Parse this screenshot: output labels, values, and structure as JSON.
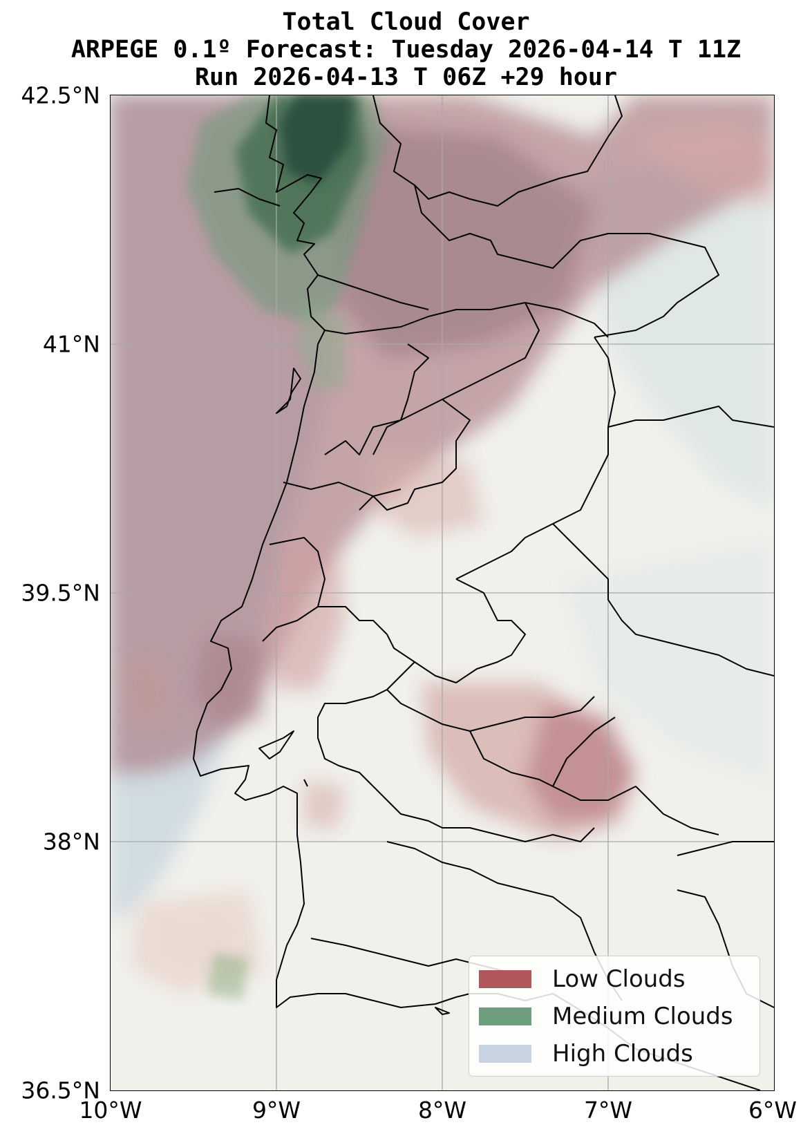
{
  "title": {
    "line1": "Total Cloud Cover",
    "line2": "ARPEGE 0.1º Forecast: Tuesday 2026-04-14 T 11Z",
    "line3": "Run 2026-04-13 T 06Z +29 hour"
  },
  "axes": {
    "lat_ticks": [
      "42.5°N",
      "41°N",
      "39.5°N",
      "38°N",
      "36.5°N"
    ],
    "lon_ticks": [
      "10°W",
      "9°W",
      "8°W",
      "7°W",
      "6°W"
    ],
    "lat_range": [
      36.5,
      42.5
    ],
    "lon_range": [
      -10,
      -6
    ],
    "grid": true
  },
  "legend": {
    "placement": "bottom-right",
    "items": [
      {
        "label": "Low Clouds",
        "color": "#b0575e"
      },
      {
        "label": "Medium Clouds",
        "color": "#6e9e7e"
      },
      {
        "label": "High Clouds",
        "color": "#c7d3e0"
      }
    ]
  },
  "colors": {
    "land_background": "#f1f1ec",
    "low_cloud": "#b0575e",
    "medium_cloud": "#2f6a45",
    "high_cloud": "#c7d3e0",
    "coastline": "#000000",
    "gridline": "#a9a9a9"
  }
}
